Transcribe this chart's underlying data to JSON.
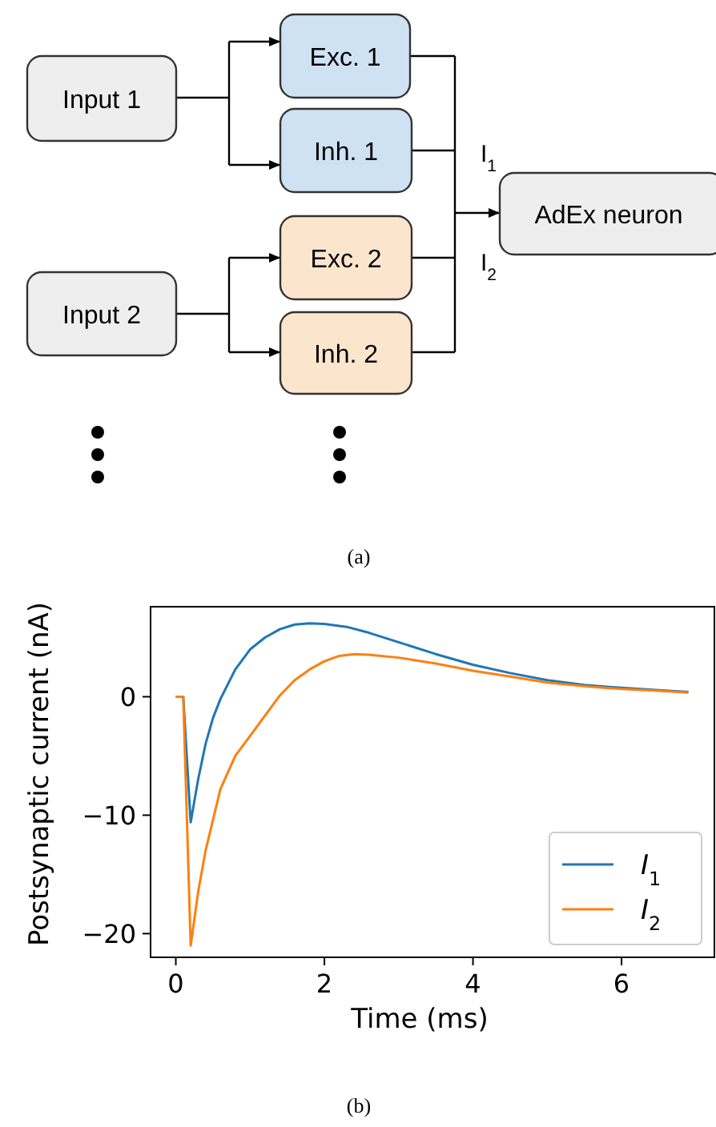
{
  "chart_data": [
    {
      "type": "other",
      "annotations": [
        "Input 1",
        "Exc. 1",
        "Inh. 1",
        "Input 2",
        "Exc. 2",
        "Inh. 2",
        "AdEx neuron",
        "I$_{1}$",
        "I$_{2}$",
        "(a)"
      ]
    },
    {
      "type": "line",
      "xlabel": "Time (ms)",
      "ylabel": "Postsynaptic current (nA)",
      "xlim": [
        -0.34,
        7.25
      ],
      "ylim": [
        -22,
        7.6
      ],
      "xticks": [
        0,
        2,
        4,
        6
      ],
      "yticks": [
        {
          "value": -20,
          "label": "−20"
        },
        {
          "value": -10,
          "label": "−10"
        },
        0
      ],
      "legend": "bottom right",
      "grid": false,
      "marker": "none",
      "line_style": "solid",
      "annotations": [
        "(b)"
      ],
      "series": [
        {
          "name": "I$_{1}$",
          "color": "#1f77b4",
          "x": [
            0,
            0.1,
            0.2,
            0.3,
            0.4,
            0.5,
            0.6,
            0.8,
            1.0,
            1.2,
            1.4,
            1.6,
            1.8,
            2.0,
            2.3,
            2.6,
            3.0,
            3.5,
            4.0,
            4.5,
            5.0,
            5.5,
            6.0,
            6.5,
            6.9
          ],
          "values": [
            0,
            0,
            -10.6,
            -7,
            -4,
            -1.8,
            -0.2,
            2.3,
            4.0,
            5,
            5.7,
            6.1,
            6.2,
            6.15,
            5.9,
            5.4,
            4.6,
            3.6,
            2.7,
            2.0,
            1.4,
            1.0,
            0.75,
            0.55,
            0.4
          ]
        },
        {
          "name": "I$_{2}$",
          "color": "#ff7f0e",
          "x": [
            0,
            0.1,
            0.2,
            0.3,
            0.4,
            0.6,
            0.8,
            1.0,
            1.2,
            1.4,
            1.6,
            1.8,
            2.0,
            2.2,
            2.4,
            2.6,
            3.0,
            3.5,
            4.0,
            4.5,
            5.0,
            5.5,
            6.0,
            6.5,
            6.9
          ],
          "values": [
            0,
            0,
            -21,
            -16.5,
            -13,
            -7.8,
            -5,
            -3.3,
            -1.6,
            0.1,
            1.4,
            2.3,
            3.0,
            3.45,
            3.6,
            3.55,
            3.3,
            2.8,
            2.2,
            1.7,
            1.2,
            0.9,
            0.65,
            0.5,
            0.35
          ]
        }
      ]
    }
  ]
}
